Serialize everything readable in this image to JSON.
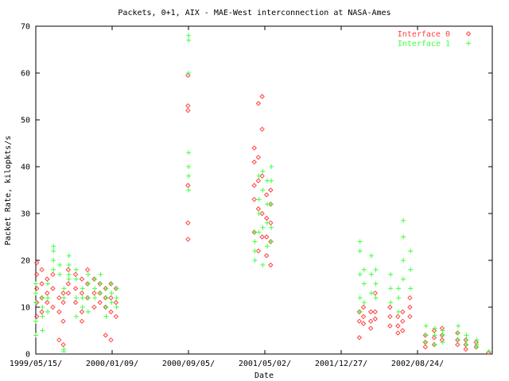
{
  "chart_data": {
    "type": "scatter",
    "title": "Packets, 0+1, AIX - MAE-West interconnection at NASA-Ames",
    "xlabel": "Date",
    "ylabel": "Packet Rate, kilopkts/s",
    "xlim": [
      "1999/05/15",
      "2003/04/30"
    ],
    "ylim": [
      0,
      70
    ],
    "grid": false,
    "legend_position": "top-right",
    "x_tick_labels": [
      "1999/05/15/",
      "2000/01/09/",
      "2000/09/05/",
      "2001/05/02/",
      "2001/12/27/",
      "2002/08/24/",
      "2003/04/20/"
    ],
    "y_tick_labels": [
      "0",
      "10",
      "20",
      "30",
      "40",
      "50",
      "60",
      "70"
    ],
    "series": [
      {
        "name": "Interface 0",
        "color": "#ff4040",
        "marker": "diamond",
        "points": [
          [
            "1999/05/18",
            19.5
          ],
          [
            "1999/05/18",
            17
          ],
          [
            "1999/05/18",
            14
          ],
          [
            "1999/05/18",
            11
          ],
          [
            "1999/05/18",
            8
          ],
          [
            "1999/06/03",
            18
          ],
          [
            "1999/06/03",
            15
          ],
          [
            "1999/06/03",
            12
          ],
          [
            "1999/06/03",
            9
          ],
          [
            "1999/06/20",
            16
          ],
          [
            "1999/06/20",
            13
          ],
          [
            "1999/06/20",
            11
          ],
          [
            "1999/07/08",
            17
          ],
          [
            "1999/07/08",
            14
          ],
          [
            "1999/07/08",
            10
          ],
          [
            "1999/07/28",
            12
          ],
          [
            "1999/07/28",
            9
          ],
          [
            "1999/07/28",
            3
          ],
          [
            "1999/08/10",
            13
          ],
          [
            "1999/08/10",
            11
          ],
          [
            "1999/08/10",
            7
          ],
          [
            "1999/08/10",
            2
          ],
          [
            "1999/08/26",
            18
          ],
          [
            "1999/08/26",
            15
          ],
          [
            "1999/08/26",
            13
          ],
          [
            "1999/09/18",
            17
          ],
          [
            "1999/09/18",
            14
          ],
          [
            "1999/09/18",
            11
          ],
          [
            "1999/10/08",
            16
          ],
          [
            "1999/10/08",
            13
          ],
          [
            "1999/10/08",
            9
          ],
          [
            "1999/10/08",
            7
          ],
          [
            "1999/10/26",
            18
          ],
          [
            "1999/10/26",
            15
          ],
          [
            "1999/10/26",
            12
          ],
          [
            "1999/11/16",
            16
          ],
          [
            "1999/11/16",
            13
          ],
          [
            "1999/11/16",
            10
          ],
          [
            "1999/12/04",
            15
          ],
          [
            "1999/12/04",
            13
          ],
          [
            "1999/12/04",
            11
          ],
          [
            "1999/12/22",
            14
          ],
          [
            "1999/12/22",
            12
          ],
          [
            "1999/12/22",
            10
          ],
          [
            "1999/12/22",
            4
          ],
          [
            "2000/01/08",
            15
          ],
          [
            "2000/01/08",
            12
          ],
          [
            "2000/01/08",
            9
          ],
          [
            "2000/01/08",
            3
          ],
          [
            "2000/01/24",
            14
          ],
          [
            "2000/01/24",
            11
          ],
          [
            "2000/01/24",
            8
          ],
          [
            "2000/09/08",
            24.5
          ],
          [
            "2000/09/08",
            28
          ],
          [
            "2000/09/08",
            36
          ],
          [
            "2000/09/08",
            52
          ],
          [
            "2000/09/08",
            53
          ],
          [
            "2000/09/08",
            59.5
          ],
          [
            "2001/04/06",
            44
          ],
          [
            "2001/04/06",
            41
          ],
          [
            "2001/04/06",
            36
          ],
          [
            "2001/04/06",
            33
          ],
          [
            "2001/04/06",
            26
          ],
          [
            "2001/04/19",
            53.5
          ],
          [
            "2001/04/19",
            42
          ],
          [
            "2001/04/19",
            37
          ],
          [
            "2001/04/19",
            31
          ],
          [
            "2001/04/19",
            22
          ],
          [
            "2001/05/01",
            55
          ],
          [
            "2001/05/01",
            48
          ],
          [
            "2001/05/01",
            38
          ],
          [
            "2001/05/01",
            30
          ],
          [
            "2001/05/01",
            25
          ],
          [
            "2001/05/15",
            34
          ],
          [
            "2001/05/15",
            29
          ],
          [
            "2001/05/15",
            25
          ],
          [
            "2001/05/15",
            21
          ],
          [
            "2001/05/28",
            35
          ],
          [
            "2001/05/28",
            32
          ],
          [
            "2001/05/28",
            28
          ],
          [
            "2001/05/28",
            24
          ],
          [
            "2001/05/28",
            19
          ],
          [
            "2002/03/05",
            9
          ],
          [
            "2002/03/05",
            7
          ],
          [
            "2002/03/05",
            3.5
          ],
          [
            "2002/03/18",
            10
          ],
          [
            "2002/03/18",
            8
          ],
          [
            "2002/03/18",
            6.5
          ],
          [
            "2002/04/10",
            9
          ],
          [
            "2002/04/10",
            7
          ],
          [
            "2002/04/10",
            5.5
          ],
          [
            "2002/04/24",
            13
          ],
          [
            "2002/04/24",
            9
          ],
          [
            "2002/04/24",
            7.5
          ],
          [
            "2002/06/10",
            10
          ],
          [
            "2002/06/10",
            8
          ],
          [
            "2002/06/10",
            6
          ],
          [
            "2002/07/05",
            8
          ],
          [
            "2002/07/05",
            6
          ],
          [
            "2002/07/05",
            4.5
          ],
          [
            "2002/07/20",
            9
          ],
          [
            "2002/07/20",
            7
          ],
          [
            "2002/07/20",
            5
          ],
          [
            "2002/08/12",
            12
          ],
          [
            "2002/08/12",
            10
          ],
          [
            "2002/08/12",
            8
          ],
          [
            "2002/09/30",
            4
          ],
          [
            "2002/09/30",
            2.5
          ],
          [
            "2002/09/30",
            1.5
          ],
          [
            "2002/10/28",
            5
          ],
          [
            "2002/10/28",
            3.5
          ],
          [
            "2002/10/28",
            2
          ],
          [
            "2002/11/22",
            5.5
          ],
          [
            "2002/11/22",
            4
          ],
          [
            "2002/11/22",
            3
          ],
          [
            "2003/01/10",
            4.5
          ],
          [
            "2003/01/10",
            3
          ],
          [
            "2003/01/10",
            2
          ],
          [
            "2003/02/05",
            3
          ],
          [
            "2003/02/05",
            2
          ],
          [
            "2003/02/05",
            1
          ],
          [
            "2003/03/10",
            2.5
          ],
          [
            "2003/03/10",
            1.5
          ],
          [
            "2003/04/18",
            0.3
          ]
        ]
      },
      {
        "name": "Interface 1",
        "color": "#40ff40",
        "marker": "plus",
        "points": [
          [
            "1999/05/15",
            15
          ],
          [
            "1999/05/15",
            13
          ],
          [
            "1999/05/15",
            11
          ],
          [
            "1999/05/15",
            7
          ],
          [
            "1999/05/15",
            4
          ],
          [
            "1999/06/05",
            12
          ],
          [
            "1999/06/05",
            10
          ],
          [
            "1999/06/05",
            8
          ],
          [
            "1999/06/05",
            5
          ],
          [
            "1999/06/22",
            15
          ],
          [
            "1999/06/22",
            12
          ],
          [
            "1999/06/22",
            9
          ],
          [
            "1999/07/10",
            23
          ],
          [
            "1999/07/10",
            22
          ],
          [
            "1999/07/10",
            20
          ],
          [
            "1999/07/10",
            18
          ],
          [
            "1999/07/30",
            19
          ],
          [
            "1999/07/30",
            17
          ],
          [
            "1999/08/12",
            14
          ],
          [
            "1999/08/12",
            12
          ],
          [
            "1999/08/12",
            1
          ],
          [
            "1999/08/12",
            0.5
          ],
          [
            "1999/08/28",
            21
          ],
          [
            "1999/08/28",
            19
          ],
          [
            "1999/08/28",
            17
          ],
          [
            "1999/08/28",
            16
          ],
          [
            "1999/09/20",
            18
          ],
          [
            "1999/09/20",
            16
          ],
          [
            "1999/09/20",
            12
          ],
          [
            "1999/09/20",
            8
          ],
          [
            "1999/10/10",
            14
          ],
          [
            "1999/10/10",
            12
          ],
          [
            "1999/10/10",
            10
          ],
          [
            "1999/10/28",
            17
          ],
          [
            "1999/10/28",
            15
          ],
          [
            "1999/10/28",
            12
          ],
          [
            "1999/10/28",
            9
          ],
          [
            "1999/11/18",
            16
          ],
          [
            "1999/11/18",
            14
          ],
          [
            "1999/11/18",
            12
          ],
          [
            "1999/12/06",
            17
          ],
          [
            "1999/12/06",
            15
          ],
          [
            "1999/12/06",
            13
          ],
          [
            "1999/12/24",
            14
          ],
          [
            "1999/12/24",
            12
          ],
          [
            "1999/12/24",
            10
          ],
          [
            "1999/12/24",
            8
          ],
          [
            "2000/01/10",
            15
          ],
          [
            "2000/01/10",
            13
          ],
          [
            "2000/01/10",
            11
          ],
          [
            "2000/01/26",
            14
          ],
          [
            "2000/01/26",
            12
          ],
          [
            "2000/01/26",
            10
          ],
          [
            "2000/09/10",
            68
          ],
          [
            "2000/09/10",
            67
          ],
          [
            "2000/09/10",
            60
          ],
          [
            "2000/09/10",
            43
          ],
          [
            "2000/09/10",
            40
          ],
          [
            "2000/09/10",
            38
          ],
          [
            "2000/09/10",
            35
          ],
          [
            "2001/04/08",
            26
          ],
          [
            "2001/04/08",
            24
          ],
          [
            "2001/04/08",
            22
          ],
          [
            "2001/04/08",
            20
          ],
          [
            "2001/04/21",
            38
          ],
          [
            "2001/04/21",
            33
          ],
          [
            "2001/04/21",
            30
          ],
          [
            "2001/04/21",
            26
          ],
          [
            "2001/05/03",
            39
          ],
          [
            "2001/05/03",
            35
          ],
          [
            "2001/05/03",
            27
          ],
          [
            "2001/05/03",
            19
          ],
          [
            "2001/05/17",
            37
          ],
          [
            "2001/05/17",
            32
          ],
          [
            "2001/05/17",
            28
          ],
          [
            "2001/05/17",
            23
          ],
          [
            "2001/05/30",
            40
          ],
          [
            "2001/05/30",
            37
          ],
          [
            "2001/05/30",
            32
          ],
          [
            "2001/05/30",
            27
          ],
          [
            "2001/05/30",
            24
          ],
          [
            "2002/03/07",
            24
          ],
          [
            "2002/03/07",
            22
          ],
          [
            "2002/03/07",
            17
          ],
          [
            "2002/03/07",
            12
          ],
          [
            "2002/03/07",
            9
          ],
          [
            "2002/03/20",
            18
          ],
          [
            "2002/03/20",
            15
          ],
          [
            "2002/03/20",
            11
          ],
          [
            "2002/04/12",
            21
          ],
          [
            "2002/04/12",
            17
          ],
          [
            "2002/04/12",
            13
          ],
          [
            "2002/04/26",
            18
          ],
          [
            "2002/04/26",
            15
          ],
          [
            "2002/04/26",
            12
          ],
          [
            "2002/06/12",
            17
          ],
          [
            "2002/06/12",
            14
          ],
          [
            "2002/06/12",
            11
          ],
          [
            "2002/07/07",
            14
          ],
          [
            "2002/07/07",
            12
          ],
          [
            "2002/07/07",
            9
          ],
          [
            "2002/07/22",
            28.5
          ],
          [
            "2002/07/22",
            25
          ],
          [
            "2002/07/22",
            20
          ],
          [
            "2002/07/22",
            16
          ],
          [
            "2002/08/14",
            22
          ],
          [
            "2002/08/14",
            18
          ],
          [
            "2002/08/14",
            14
          ],
          [
            "2002/10/02",
            6
          ],
          [
            "2002/10/02",
            4
          ],
          [
            "2002/10/02",
            2.5
          ],
          [
            "2002/10/30",
            5.5
          ],
          [
            "2002/10/30",
            4
          ],
          [
            "2002/10/30",
            2
          ],
          [
            "2002/11/24",
            5
          ],
          [
            "2002/11/24",
            4
          ],
          [
            "2002/11/24",
            2.5
          ],
          [
            "2003/01/12",
            6
          ],
          [
            "2003/01/12",
            4.5
          ],
          [
            "2003/01/12",
            3
          ],
          [
            "2003/02/07",
            4
          ],
          [
            "2003/02/07",
            3
          ],
          [
            "2003/02/07",
            2
          ],
          [
            "2003/03/12",
            3
          ],
          [
            "2003/03/12",
            2
          ],
          [
            "2003/03/12",
            1.5
          ],
          [
            "2003/04/20",
            0.5
          ]
        ]
      }
    ]
  }
}
